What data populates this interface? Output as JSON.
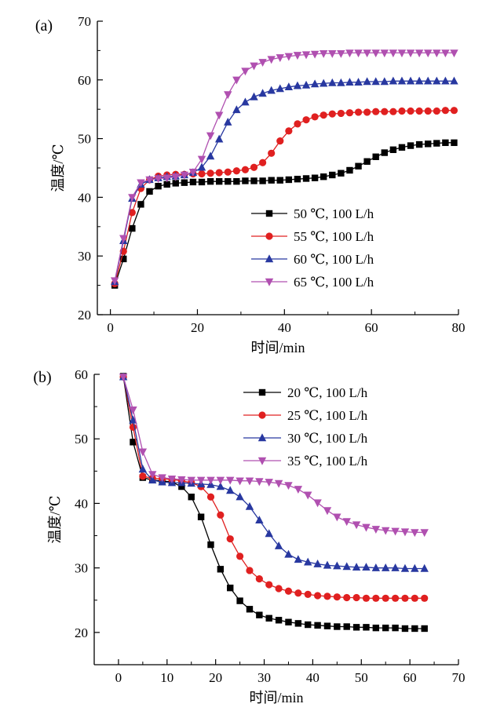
{
  "chart_data": [
    {
      "type": "line",
      "panel_label": "(a)",
      "xlabel": "时间/min",
      "ylabel": "温度/℃",
      "xlim": [
        -3,
        80
      ],
      "ylim": [
        20,
        70
      ],
      "xticks": [
        0,
        20,
        40,
        60,
        80
      ],
      "yticks": [
        20,
        30,
        40,
        50,
        60,
        70
      ],
      "legend_position": "right",
      "grid": false,
      "x": [
        1,
        3,
        5,
        7,
        9,
        11,
        13,
        15,
        17,
        19,
        21,
        23,
        25,
        27,
        29,
        31,
        33,
        35,
        37,
        39,
        41,
        43,
        45,
        47,
        49,
        51,
        53,
        55,
        57,
        59,
        61,
        63,
        65,
        67,
        69,
        71,
        73,
        75,
        77,
        79
      ],
      "series": [
        {
          "name": "50 ℃, 100 L/h",
          "marker": "square",
          "color": "#000000",
          "values": [
            25.0,
            29.5,
            34.7,
            38.8,
            41.0,
            41.9,
            42.2,
            42.4,
            42.5,
            42.6,
            42.6,
            42.7,
            42.7,
            42.7,
            42.7,
            42.8,
            42.8,
            42.8,
            42.9,
            42.9,
            43.0,
            43.1,
            43.2,
            43.3,
            43.5,
            43.8,
            44.1,
            44.6,
            45.3,
            46.1,
            46.9,
            47.6,
            48.1,
            48.5,
            48.8,
            49.0,
            49.1,
            49.2,
            49.3,
            49.3
          ]
        },
        {
          "name": "55 ℃, 100 L/h",
          "marker": "circle",
          "color": "#e02020",
          "values": [
            25.3,
            30.8,
            37.4,
            41.5,
            43.0,
            43.6,
            43.8,
            43.9,
            43.9,
            44.0,
            44.0,
            44.1,
            44.2,
            44.3,
            44.5,
            44.7,
            45.1,
            45.9,
            47.5,
            49.6,
            51.3,
            52.5,
            53.2,
            53.7,
            54.0,
            54.2,
            54.3,
            54.4,
            54.5,
            54.5,
            54.6,
            54.6,
            54.6,
            54.7,
            54.7,
            54.7,
            54.7,
            54.7,
            54.8,
            54.8
          ]
        },
        {
          "name": "60 ℃, 100 L/h",
          "marker": "triangle-up",
          "color": "#2838a0",
          "values": [
            25.6,
            32.6,
            39.8,
            42.2,
            43.0,
            43.3,
            43.5,
            43.6,
            43.8,
            44.2,
            45.1,
            47.0,
            49.9,
            52.8,
            54.9,
            56.2,
            57.1,
            57.7,
            58.2,
            58.5,
            58.8,
            59.0,
            59.1,
            59.3,
            59.4,
            59.5,
            59.5,
            59.6,
            59.6,
            59.7,
            59.7,
            59.7,
            59.8,
            59.8,
            59.8,
            59.8,
            59.8,
            59.8,
            59.8,
            59.8
          ]
        },
        {
          "name": "65 ℃, 100 L/h",
          "marker": "triangle-down",
          "color": "#b050b0",
          "values": [
            25.8,
            33.0,
            40.0,
            42.5,
            43.0,
            43.2,
            43.3,
            43.5,
            43.8,
            44.3,
            46.5,
            50.5,
            54.0,
            57.5,
            60.0,
            61.5,
            62.4,
            63.0,
            63.5,
            63.8,
            64.0,
            64.2,
            64.3,
            64.4,
            64.5,
            64.5,
            64.5,
            64.6,
            64.6,
            64.6,
            64.6,
            64.6,
            64.6,
            64.6,
            64.6,
            64.6,
            64.6,
            64.6,
            64.6,
            64.6
          ]
        }
      ]
    },
    {
      "type": "line",
      "panel_label": "(b)",
      "xlabel": "时间/min",
      "ylabel": "温度/℃",
      "xlim": [
        -5,
        70
      ],
      "ylim": [
        15,
        60
      ],
      "xticks": [
        0,
        10,
        20,
        30,
        40,
        50,
        60,
        70
      ],
      "yticks": [
        20,
        30,
        40,
        50,
        60
      ],
      "legend_position": "top-right",
      "grid": false,
      "x": [
        1,
        3,
        5,
        7,
        9,
        11,
        13,
        15,
        17,
        19,
        21,
        23,
        25,
        27,
        29,
        31,
        33,
        35,
        37,
        39,
        41,
        43,
        45,
        47,
        49,
        51,
        53,
        55,
        57,
        59,
        61,
        63
      ],
      "series": [
        {
          "name": "20 ℃, 100 L/h",
          "marker": "square",
          "color": "#000000",
          "values": [
            59.7,
            49.5,
            44.0,
            43.6,
            43.5,
            43.3,
            42.6,
            41.0,
            37.9,
            33.6,
            29.8,
            26.9,
            24.9,
            23.6,
            22.7,
            22.2,
            21.9,
            21.6,
            21.4,
            21.2,
            21.1,
            21.0,
            20.9,
            20.9,
            20.8,
            20.8,
            20.7,
            20.7,
            20.7,
            20.6,
            20.6,
            20.6
          ]
        },
        {
          "name": "25 ℃, 100 L/h",
          "marker": "circle",
          "color": "#e02020",
          "values": [
            59.6,
            51.8,
            44.2,
            43.9,
            43.8,
            43.7,
            43.5,
            43.2,
            42.6,
            41.0,
            38.2,
            34.5,
            31.8,
            29.6,
            28.3,
            27.4,
            26.8,
            26.4,
            26.1,
            25.9,
            25.7,
            25.6,
            25.5,
            25.4,
            25.4,
            25.3,
            25.3,
            25.3,
            25.3,
            25.3,
            25.3,
            25.3
          ]
        },
        {
          "name": "30 ℃, 100 L/h",
          "marker": "triangle-up",
          "color": "#2838a0",
          "values": [
            59.6,
            52.9,
            45.3,
            43.6,
            43.3,
            43.2,
            43.2,
            43.1,
            43.0,
            42.9,
            42.6,
            42.0,
            41.0,
            39.5,
            37.4,
            35.3,
            33.4,
            32.1,
            31.3,
            30.9,
            30.6,
            30.4,
            30.3,
            30.2,
            30.1,
            30.1,
            30.0,
            30.0,
            30.0,
            29.9,
            29.9,
            29.9
          ]
        },
        {
          "name": "35 ℃, 100 L/h",
          "marker": "triangle-down",
          "color": "#b050b0",
          "values": [
            59.6,
            54.5,
            48.0,
            44.5,
            44.0,
            43.8,
            43.7,
            43.6,
            43.6,
            43.6,
            43.6,
            43.6,
            43.5,
            43.5,
            43.4,
            43.3,
            43.1,
            42.8,
            42.2,
            41.3,
            40.1,
            38.9,
            37.9,
            37.2,
            36.7,
            36.3,
            36.0,
            35.8,
            35.7,
            35.6,
            35.5,
            35.5
          ]
        }
      ]
    }
  ]
}
